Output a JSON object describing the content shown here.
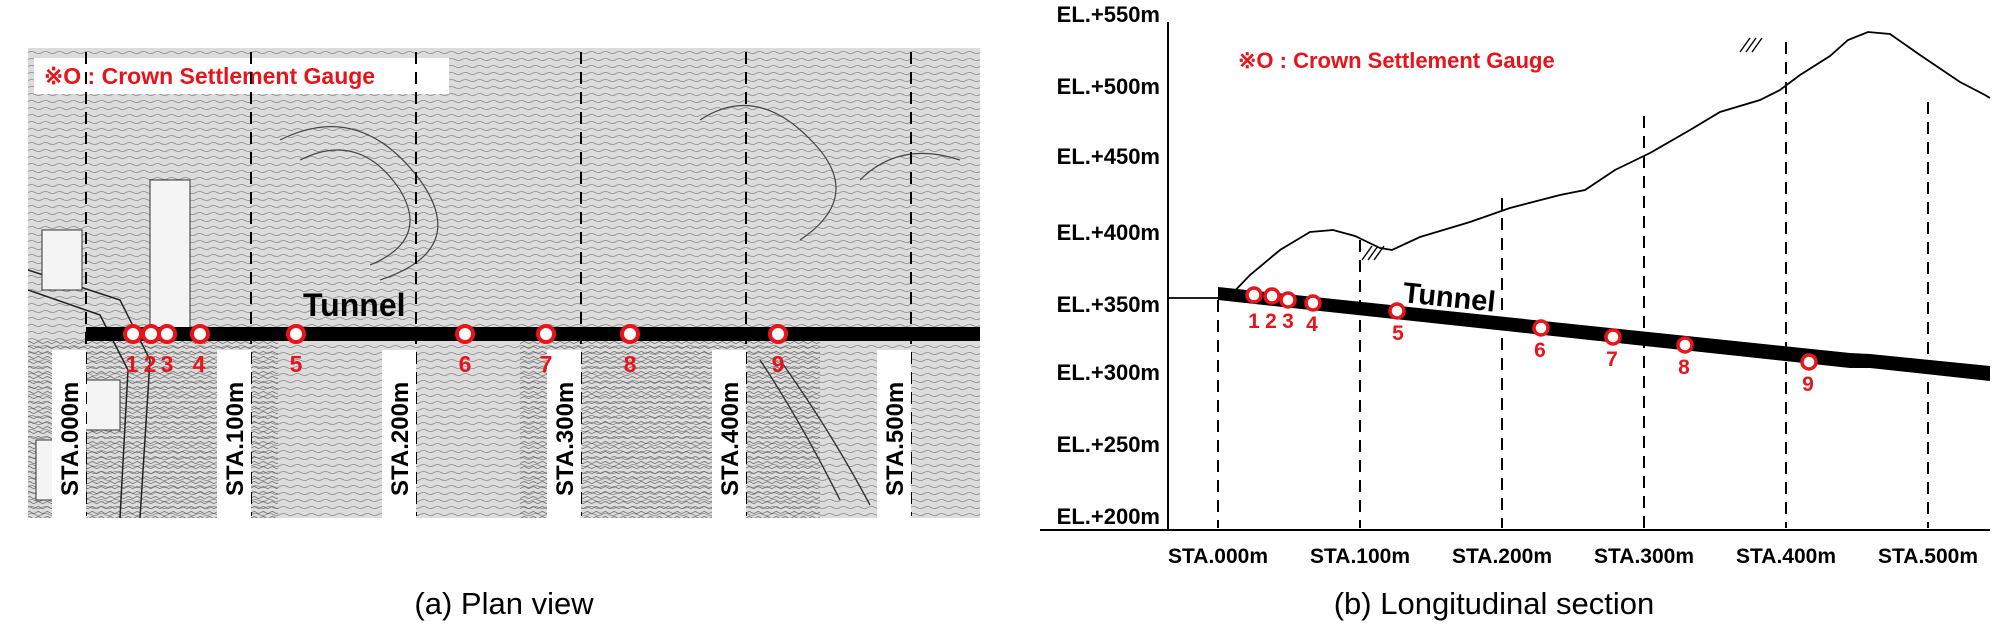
{
  "plan": {
    "legend": "※O  : Crown Settlement Gauge",
    "tunnel_label": "Tunnel",
    "stations": [
      "STA.000m",
      "STA.100m",
      "STA.200m",
      "STA.300m",
      "STA.400m",
      "STA.500m"
    ],
    "gauges": [
      "1",
      "2",
      "3",
      "4",
      "5",
      "6",
      "7",
      "8",
      "9"
    ],
    "caption": "(a) Plan view"
  },
  "section": {
    "legend": "※O  : Crown Settlement Gauge",
    "tunnel_label": "Tunnel",
    "elevations": [
      "EL.+550m",
      "EL.+500m",
      "EL.+450m",
      "EL.+400m",
      "EL.+350m",
      "EL.+300m",
      "EL.+250m",
      "EL.+200m"
    ],
    "stations": [
      "STA.000m",
      "STA.100m",
      "STA.200m",
      "STA.300m",
      "STA.400m",
      "STA.500m"
    ],
    "gauges": [
      "1",
      "2",
      "3",
      "4",
      "5",
      "6",
      "7",
      "8",
      "9"
    ],
    "caption": "(b) Longitudinal section"
  },
  "colors": {
    "gauge": "#e8141b",
    "tunnel": "#000000",
    "line": "#000000"
  }
}
